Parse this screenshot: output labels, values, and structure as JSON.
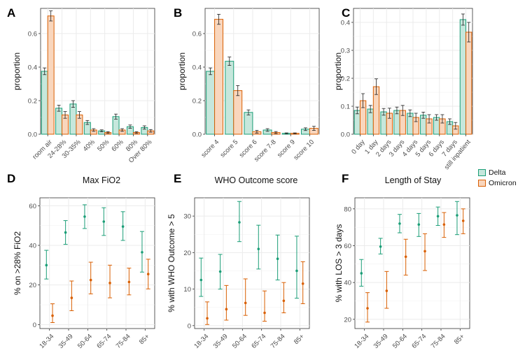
{
  "colors": {
    "delta_fill": "#c6e7dc",
    "delta_line": "#1b9e77",
    "omicron_fill": "#f9d6bd",
    "omicron_line": "#d95f02"
  },
  "legend": {
    "delta": "Delta",
    "omicron": "Omicron"
  },
  "chart_data": [
    {
      "panel": "A",
      "type": "bar",
      "title": "",
      "xlabel": "",
      "ylabel": "proportion",
      "ylim": [
        0,
        0.75
      ],
      "yticks": [
        0.0,
        0.2,
        0.4,
        0.6
      ],
      "ytick_labels": [
        "0.0",
        "0.2",
        "0.4",
        "0.6"
      ],
      "categories": [
        "room air",
        "24-28%",
        "30-35%",
        "40%",
        "50%",
        "60%",
        "80%",
        "Over 80%"
      ],
      "series": [
        {
          "name": "Delta",
          "values": [
            0.375,
            0.155,
            0.18,
            0.07,
            0.02,
            0.105,
            0.045,
            0.04
          ],
          "err": [
            0.02,
            0.018,
            0.02,
            0.012,
            0.006,
            0.015,
            0.01,
            0.01
          ]
        },
        {
          "name": "Omicron",
          "values": [
            0.705,
            0.115,
            0.115,
            0.025,
            0.01,
            0.025,
            0.01,
            0.02
          ],
          "err": [
            0.03,
            0.02,
            0.02,
            0.008,
            0.005,
            0.008,
            0.005,
            0.008
          ]
        }
      ]
    },
    {
      "panel": "B",
      "type": "bar",
      "title": "",
      "xlabel": "",
      "ylabel": "proportion",
      "ylim": [
        0,
        0.75
      ],
      "yticks": [
        0.0,
        0.2,
        0.4,
        0.6
      ],
      "ytick_labels": [
        "0.0",
        "0.2",
        "0.4",
        "0.6"
      ],
      "categories": [
        "score 4",
        "score 5",
        "score 6",
        "score 7-8",
        "score 9",
        "score 10"
      ],
      "series": [
        {
          "name": "Delta",
          "values": [
            0.375,
            0.435,
            0.13,
            0.025,
            0.005,
            0.03
          ],
          "err": [
            0.02,
            0.025,
            0.015,
            0.008,
            0.003,
            0.008
          ]
        },
        {
          "name": "Omicron",
          "values": [
            0.685,
            0.26,
            0.015,
            0.01,
            0.005,
            0.035
          ],
          "err": [
            0.03,
            0.03,
            0.008,
            0.006,
            0.003,
            0.012
          ]
        }
      ]
    },
    {
      "panel": "C",
      "type": "bar",
      "title": "",
      "xlabel": "",
      "ylabel": "proportion",
      "ylim": [
        0,
        0.45
      ],
      "yticks": [
        0.0,
        0.1,
        0.2,
        0.3,
        0.4
      ],
      "ytick_labels": [
        "0.0",
        "0.1",
        "0.2",
        "0.3",
        "0.4"
      ],
      "categories": [
        "0 day",
        "1 day",
        "2 days",
        "3 days",
        "4 days",
        "5 days",
        "6 days",
        "7 days",
        "still inpatient"
      ],
      "series": [
        {
          "name": "Delta",
          "values": [
            0.085,
            0.09,
            0.08,
            0.085,
            0.075,
            0.068,
            0.06,
            0.045,
            0.41
          ],
          "err": [
            0.012,
            0.013,
            0.012,
            0.012,
            0.012,
            0.011,
            0.01,
            0.01,
            0.02
          ]
        },
        {
          "name": "Omicron",
          "values": [
            0.12,
            0.17,
            0.075,
            0.085,
            0.06,
            0.055,
            0.055,
            0.03,
            0.365
          ],
          "err": [
            0.025,
            0.028,
            0.018,
            0.018,
            0.015,
            0.015,
            0.015,
            0.012,
            0.035
          ]
        }
      ]
    },
    {
      "panel": "D",
      "type": "scatter",
      "title": "Max FiO2",
      "xlabel": "",
      "ylabel": "% on >28% FiO2",
      "ylim": [
        -2,
        64
      ],
      "yticks": [
        0,
        20,
        40,
        60
      ],
      "ytick_labels": [
        "0",
        "20",
        "40",
        "60"
      ],
      "categories": [
        "18-34",
        "35-49",
        "50-64",
        "65-74",
        "75-84",
        "85+"
      ],
      "series": [
        {
          "name": "Delta",
          "values": [
            30,
            46.5,
            54.5,
            52,
            49.5,
            36.5
          ],
          "lo": [
            23,
            40.5,
            48.5,
            45,
            42.5,
            26.5
          ],
          "hi": [
            37.5,
            52.5,
            60.5,
            59,
            57,
            47
          ]
        },
        {
          "name": "Omicron",
          "values": [
            4.5,
            13.5,
            22.5,
            21,
            21.5,
            25.5
          ],
          "lo": [
            1,
            7,
            15.5,
            13.5,
            15,
            18
          ],
          "hi": [
            10.5,
            22,
            31.5,
            30,
            28.5,
            33
          ]
        }
      ]
    },
    {
      "panel": "E",
      "type": "scatter",
      "title": "WHO Outcome score",
      "xlabel": "",
      "ylabel": "% with WHO Outcome > 5",
      "ylim": [
        -0.8,
        35
      ],
      "yticks": [
        0,
        10,
        20,
        30
      ],
      "ytick_labels": [
        "0",
        "10",
        "20",
        "30"
      ],
      "categories": [
        "18-34",
        "35-49",
        "50-64",
        "65-74",
        "75-84",
        "85+"
      ],
      "series": [
        {
          "name": "Delta",
          "values": [
            12.5,
            14.8,
            28.3,
            21,
            18.3,
            15
          ],
          "lo": [
            8,
            10,
            23,
            15.5,
            12.5,
            7.5
          ],
          "hi": [
            18.5,
            19.5,
            34,
            27.5,
            24.8,
            24.5
          ]
        },
        {
          "name": "Omicron",
          "values": [
            2,
            4.5,
            6.2,
            3.5,
            6.8,
            11.5
          ],
          "lo": [
            0.3,
            1.5,
            2.8,
            1.2,
            3.5,
            6
          ],
          "hi": [
            6.5,
            11,
            12.8,
            9.5,
            11.8,
            17.5
          ]
        }
      ]
    },
    {
      "panel": "F",
      "type": "scatter",
      "title": "Length of Stay",
      "xlabel": "",
      "ylabel": "% with LOS > 3 days",
      "ylim": [
        15,
        86
      ],
      "yticks": [
        20,
        40,
        60,
        80
      ],
      "ytick_labels": [
        "20",
        "40",
        "60",
        "80"
      ],
      "categories": [
        "18-34",
        "35-49",
        "50-64",
        "65-74",
        "75-84",
        "85+"
      ],
      "series": [
        {
          "name": "Delta",
          "values": [
            45,
            59.5,
            72,
            71.5,
            76,
            76.5
          ],
          "lo": [
            38,
            55.5,
            67,
            65,
            71,
            66
          ],
          "hi": [
            52.5,
            64,
            77,
            77.5,
            81,
            84
          ]
        },
        {
          "name": "Omicron",
          "values": [
            26,
            35.5,
            54,
            57,
            71.5,
            73.5
          ],
          "lo": [
            18.5,
            26,
            44,
            46.5,
            64.5,
            66.5
          ],
          "hi": [
            34.5,
            46,
            63.5,
            66.5,
            78,
            80
          ]
        }
      ]
    }
  ]
}
